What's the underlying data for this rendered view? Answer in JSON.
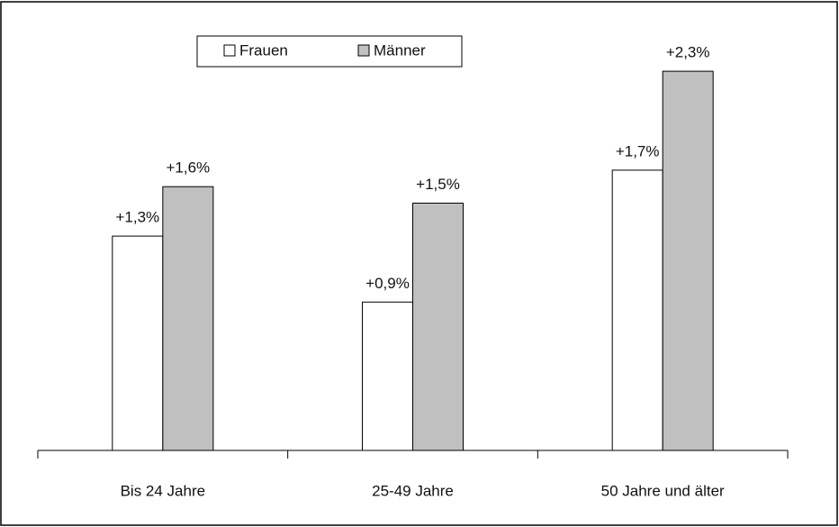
{
  "chart_data": {
    "type": "bar",
    "categories": [
      "Bis 24 Jahre",
      "25-49 Jahre",
      "50 Jahre und älter"
    ],
    "series": [
      {
        "name": "Frauen",
        "color": "#ffffff",
        "values": [
          1.3,
          0.9,
          1.7
        ],
        "value_labels": [
          "+1,3%",
          "+0,9%",
          "+1,7%"
        ]
      },
      {
        "name": "Männer",
        "color": "#c0c0c0",
        "values": [
          1.6,
          1.5,
          2.3
        ],
        "value_labels": [
          "+1,6%",
          "+1,5%",
          "+2,3%"
        ]
      }
    ],
    "ylim": [
      0,
      2.5
    ],
    "legend": "top"
  }
}
